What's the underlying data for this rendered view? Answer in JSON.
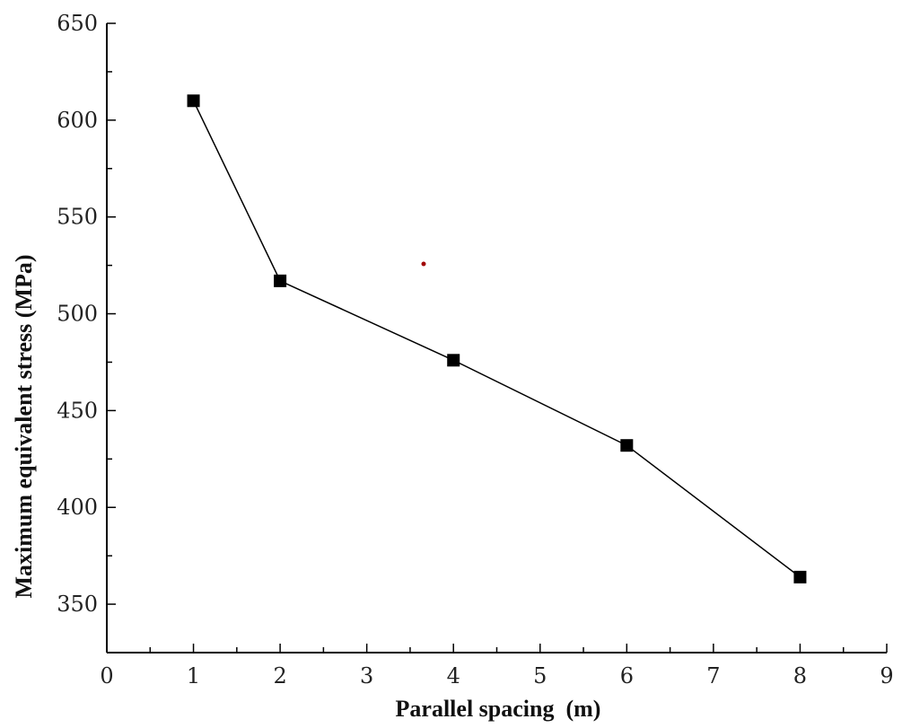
{
  "chart_data": {
    "type": "line",
    "title": "",
    "xlabel": "Parallel spacing  (m)",
    "ylabel": "Maximum equivalent stress (MPa)",
    "xlim": [
      0,
      9
    ],
    "ylim": [
      325,
      650
    ],
    "xticks": [
      0,
      1,
      2,
      3,
      4,
      5,
      6,
      7,
      8,
      9
    ],
    "yticks": [
      350,
      400,
      450,
      500,
      550,
      600,
      650
    ],
    "grid": false,
    "series": [
      {
        "x": [
          1,
          2,
          4,
          6,
          8
        ],
        "y": [
          610,
          517,
          476,
          432,
          364
        ]
      }
    ],
    "line_color": "#000000",
    "marker": "square",
    "stray_mark_color": "#a00000"
  }
}
